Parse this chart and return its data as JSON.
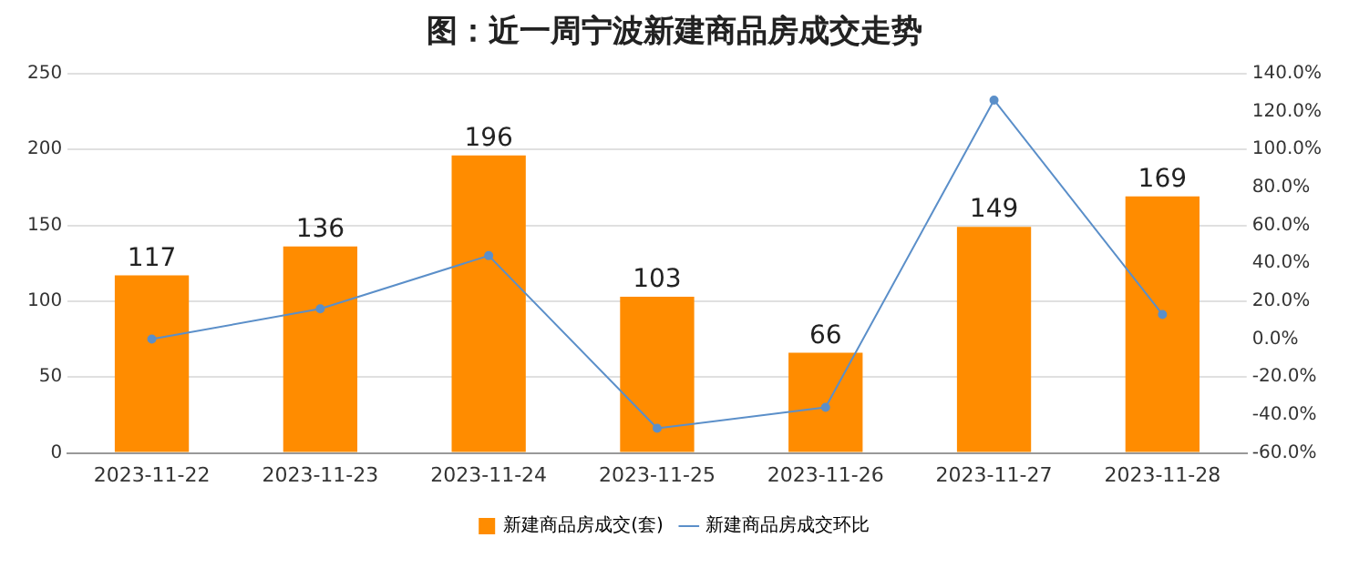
{
  "chart_data": {
    "type": "bar",
    "title": "图：近一周宁波新建商品房成交走势",
    "categories": [
      "2023-11-22",
      "2023-11-23",
      "2023-11-24",
      "2023-11-25",
      "2023-11-26",
      "2023-11-27",
      "2023-11-28"
    ],
    "series": [
      {
        "name": "新建商品房成交(套)",
        "color": "#ff8c00",
        "values": [
          117,
          136,
          196,
          103,
          66,
          149,
          169
        ],
        "value_labels": [
          "117",
          "136",
          "196",
          "103",
          "66",
          "149",
          "169"
        ]
      },
      {
        "name": "新建商品房成交环比",
        "type": "line",
        "axis": "y2",
        "color": "#5b8fc9",
        "values": [
          0,
          16,
          44,
          -47,
          -36,
          126,
          13
        ]
      }
    ],
    "ylim": [
      0,
      250
    ],
    "yticks": [
      0,
      50,
      100,
      150,
      200,
      250
    ],
    "y2lim": [
      -60,
      140
    ],
    "y2ticks": [
      {
        "value": -60,
        "label": "-60.0%"
      },
      {
        "value": -40,
        "label": "-40.0%"
      },
      {
        "value": -20,
        "label": "-20.0%"
      },
      {
        "value": 0,
        "label": "0.0%"
      },
      {
        "value": 20,
        "label": "20.0%"
      },
      {
        "value": 40,
        "label": "40.0%"
      },
      {
        "value": 60,
        "label": "60.0%"
      },
      {
        "value": 80,
        "label": "80.0%"
      },
      {
        "value": 100,
        "label": "100.0%"
      },
      {
        "value": 120,
        "label": "120.0%"
      },
      {
        "value": 140,
        "label": "140.0%"
      }
    ],
    "grid": "y",
    "legend": "bottom",
    "marker": "circle",
    "line_style": "solid"
  }
}
